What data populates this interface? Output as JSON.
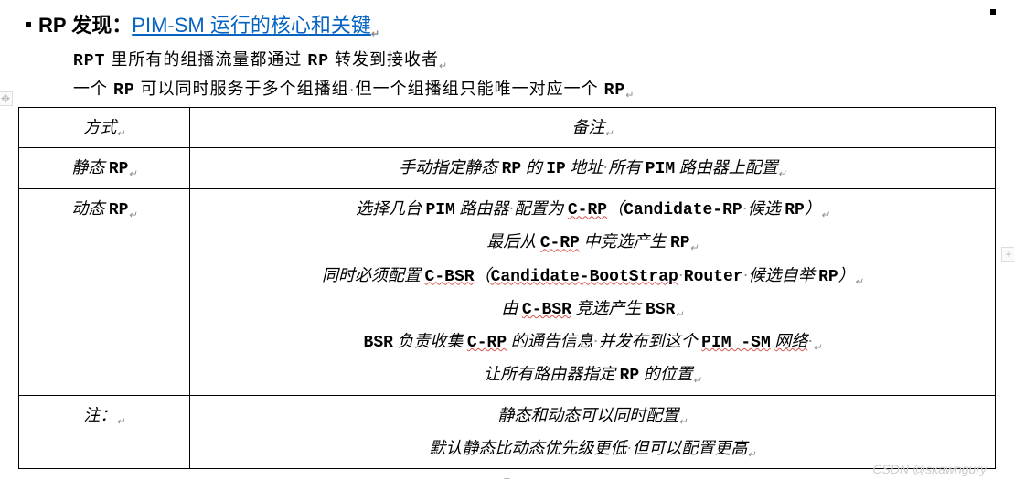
{
  "heading": {
    "prefix": "RP 发现：",
    "title_link": "PIM-SM 运行的核心和关键"
  },
  "intro": {
    "line1_before_bold1": "",
    "bold_rpt": "RPT",
    "line1_mid": " 里所有的组播流量都通过 ",
    "bold_rp1": "RP",
    "line1_after": " 转发到接收者",
    "line2_a": "一个 ",
    "bold_rp2": "RP",
    "line2_b": " 可以同时服务于多个组播组",
    "line2_c": "但一个组播组只能唯一对应一个 ",
    "bold_rp3": "RP"
  },
  "table": {
    "header": {
      "c1": "方式",
      "c2": "备注"
    },
    "row1": {
      "c1_pre": "静态 ",
      "c1_bold": "RP",
      "c2_a": "手动指定静态 ",
      "c2_b": "RP",
      "c2_c": " 的 ",
      "c2_d": "IP",
      "c2_e": " 地址",
      "c2_f": "所有 ",
      "c2_g": "PIM",
      "c2_h": " 路由器上配置"
    },
    "row2": {
      "c1_pre": "动态 ",
      "c1_bold": "RP",
      "l1_a": "选择几台 ",
      "l1_b": "PIM",
      "l1_c": " 路由器",
      "l1_d": "配置为 ",
      "l1_e": "C-RP",
      "l1_f": "（",
      "l1_g": "Candidate-RP",
      "l1_h": "候选 ",
      "l1_i": "RP",
      "l1_j": "）",
      "l2_a": "最后从 ",
      "l2_b": "C-RP",
      "l2_c": " 中竞选产生 ",
      "l2_d": "RP",
      "l3_a": "同时必须配置 ",
      "l3_b": "C-BSR",
      "l3_c": "（",
      "l3_d": "Candidate-BootStrap",
      "l3_e": "Router",
      "l3_f": "候选自举 ",
      "l3_g": "RP",
      "l3_h": "）",
      "l4_a": "由 ",
      "l4_b": "C-BSR",
      "l4_c": " 竞选产生 ",
      "l4_d": "BSR",
      "l5_a": "BSR",
      "l5_b": " 负责收集 ",
      "l5_c": "C-RP",
      "l5_d": " 的通告信息",
      "l5_e": "并发布到这个 ",
      "l5_f": "PIM -SM",
      "l5_g": " ",
      "l5_h": "网络",
      "l6_a": "让所有路由器指定 ",
      "l6_b": "RP",
      "l6_c": " 的位置"
    },
    "row3": {
      "c1": "注：",
      "l1": "静态和动态可以同时配置",
      "l2_a": "默认静态比动态优先级更低",
      "l2_b": "但可以配置更高"
    }
  },
  "watermark": "CSDN @skawngury",
  "marks": {
    "dot": "·",
    "ret": "↵",
    "plus": "+",
    "cross": "✥"
  }
}
